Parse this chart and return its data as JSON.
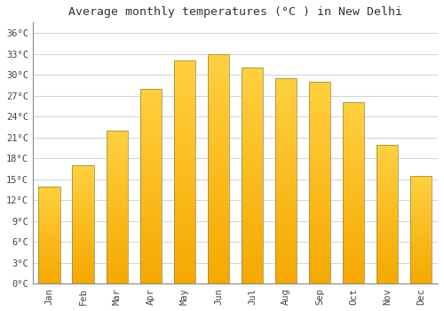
{
  "title": "Average monthly temperatures (°C ) in New Delhi",
  "months": [
    "Jan",
    "Feb",
    "Mar",
    "Apr",
    "May",
    "Jun",
    "Jul",
    "Aug",
    "Sep",
    "Oct",
    "Nov",
    "Dec"
  ],
  "temperatures": [
    14,
    17,
    22,
    28,
    32,
    33,
    31,
    29.5,
    29,
    26,
    20,
    15.5
  ],
  "bar_color_bottom": "#F5A800",
  "bar_color_top": "#FFD040",
  "bar_edge_color": "#888844",
  "yticks": [
    0,
    3,
    6,
    9,
    12,
    15,
    18,
    21,
    24,
    27,
    30,
    33,
    36
  ],
  "ylim": [
    0,
    37.5
  ],
  "background_color": "#ffffff",
  "grid_color": "#cccccc",
  "title_fontsize": 9.5,
  "tick_fontsize": 7.5,
  "font_family": "monospace"
}
